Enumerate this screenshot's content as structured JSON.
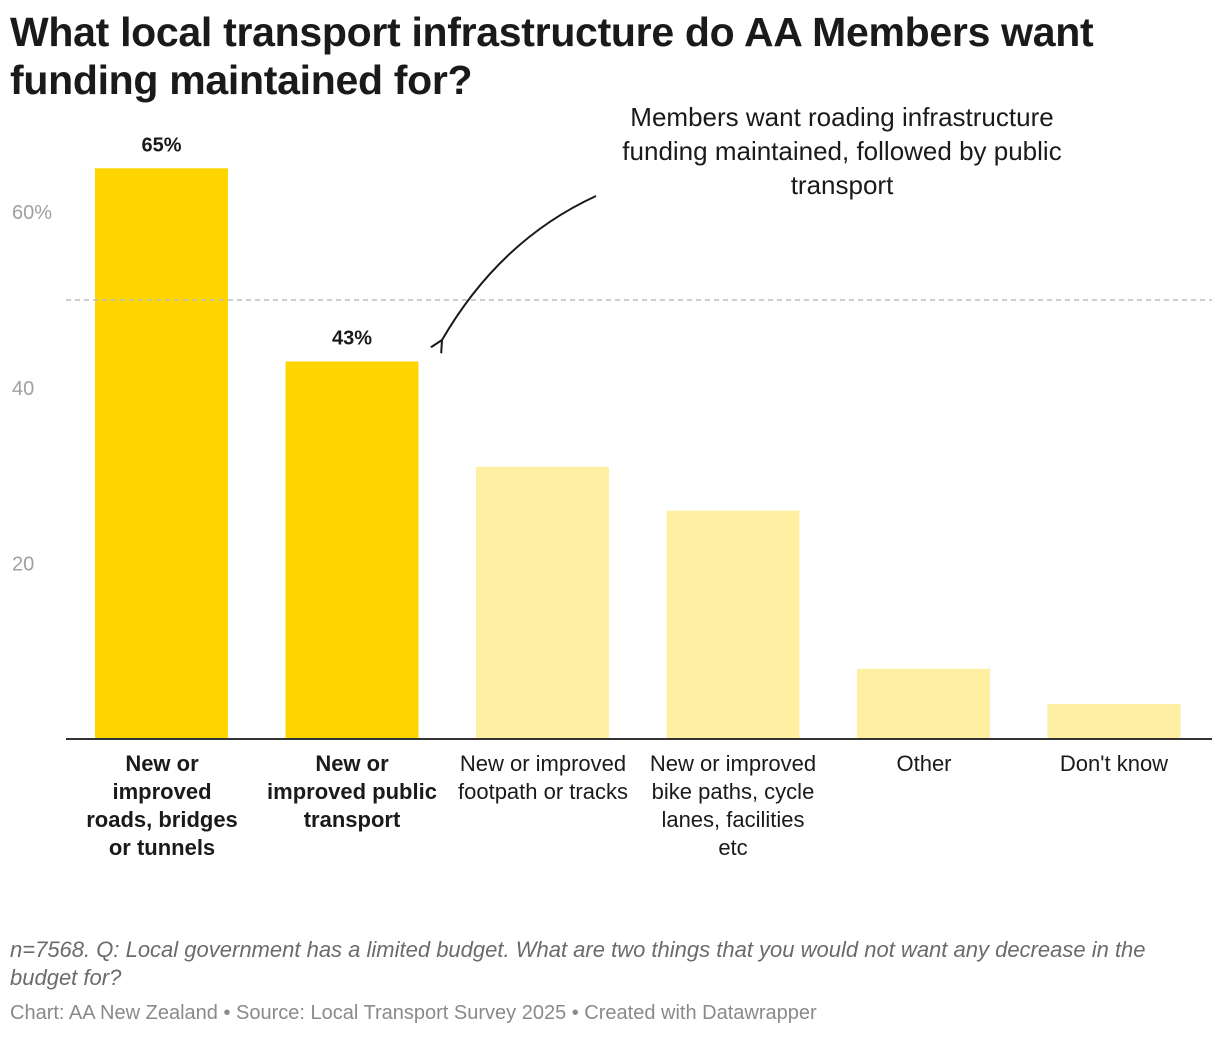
{
  "chart_data": {
    "type": "bar",
    "title": "What local transport infrastructure do AA Members want funding maintained for?",
    "categories": [
      "New or improved roads, bridges or tunnels",
      "New or improved public transport",
      "New or improved footpath or tracks",
      "New or improved bike paths, cycle lanes, facilities etc",
      "Other",
      "Don't know"
    ],
    "values": [
      65,
      43,
      31,
      26,
      8,
      4
    ],
    "highlighted": [
      true,
      true,
      false,
      false,
      false,
      false
    ],
    "value_labels": [
      "65%",
      "43%",
      "",
      "",
      "",
      ""
    ],
    "y_ticks": [
      20,
      40,
      60
    ],
    "y_tick_labels": [
      "20",
      "40",
      "60%"
    ],
    "ylim": [
      0,
      70
    ],
    "reference_line": 50,
    "xlabel": "",
    "ylabel": "",
    "annotation": {
      "lines": [
        "Members want roading infrastructure",
        "funding maintained, followed by public",
        "transport"
      ],
      "points_to": "New or improved public transport"
    },
    "colors": {
      "highlight": "#FFD500",
      "muted": "#FFEFA3",
      "axis": "#333333",
      "gridline": "#bdbdbd"
    }
  },
  "notes": "n=7568. Q: Local government has a limited budget. What are two things that you would not want any decrease in the budget for?",
  "credits": "Chart: AA New Zealand • Source: Local Transport Survey 2025 • Created with Datawrapper"
}
